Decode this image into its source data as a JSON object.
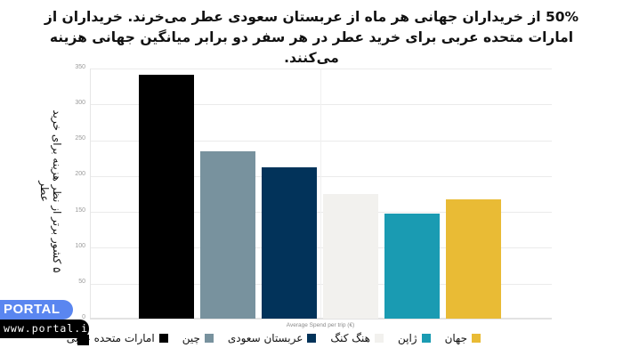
{
  "title": "50% از خریداران جهانی هر ماه از عربستان سعودی عطر می‌خرند. خریداران از امارات متحده عربی برای خرید عطر در هر سفر دو برابر میانگین جهانی هزینه می‌کنند.",
  "watermark": {
    "brand": "PORTAL",
    "url": "www.portal.ir",
    "brand_color": "#5a86f0"
  },
  "chart_data": {
    "type": "bar",
    "title": "50% از خریداران جهانی هر ماه از عربستان سعودی عطر می‌خرند. خریداران از امارات متحده عربی برای خرید عطر در هر سفر دو برابر میانگین جهانی هزینه می‌کنند.",
    "xlabel": "Average Spend per trip (€)",
    "ylabel": "۵ کشور برتر از نظر هزینه برای خرید عطر",
    "ylim": [
      0,
      350
    ],
    "yticks": [
      "0",
      "50",
      "100",
      "150",
      "200",
      "250",
      "300",
      "350"
    ],
    "grid": true,
    "legend_position": "bottom",
    "categories": [
      "امارات متحده عربی",
      "چین",
      "عربستان سعودی",
      "هنگ کنگ",
      "ژاپن",
      "جهان"
    ],
    "values": [
      340,
      233,
      211,
      174,
      146,
      166
    ],
    "colors": [
      "#000000",
      "#78929e",
      "#02335a",
      "#f2f1ee",
      "#1a9bb2",
      "#e9bb35"
    ]
  },
  "legend": [
    {
      "label": "جهان",
      "color": "#e9bb35"
    },
    {
      "label": "ژاپن",
      "color": "#1a9bb2"
    },
    {
      "label": "هنگ کنگ",
      "color": "#f2f1ee"
    },
    {
      "label": "عربستان سعودی",
      "color": "#02335a"
    },
    {
      "label": "چین",
      "color": "#78929e"
    },
    {
      "label": "امارات متحده عربی",
      "color": "#000000"
    }
  ]
}
